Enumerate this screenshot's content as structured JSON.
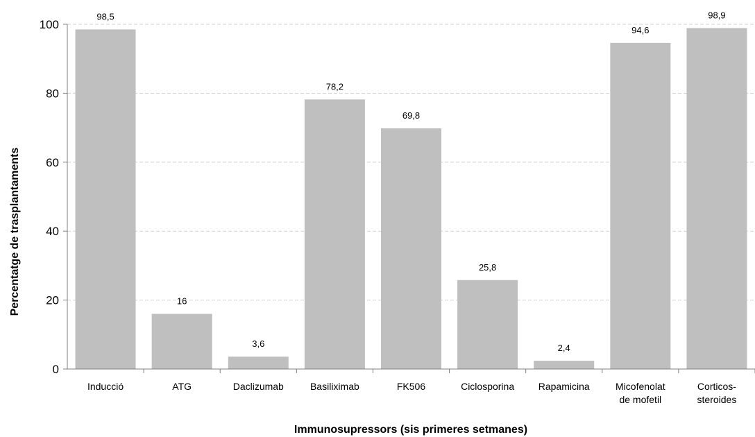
{
  "chart_data": {
    "type": "bar",
    "categories": [
      "Inducció",
      "ATG",
      "Daclizumab",
      "Basiliximab",
      "FK506",
      "Ciclosporina",
      "Rapamicina",
      "Micofenolat de mofetil",
      "Corticos-steroides"
    ],
    "category_lines": [
      [
        "Inducció"
      ],
      [
        "ATG"
      ],
      [
        "Daclizumab"
      ],
      [
        "Basiliximab"
      ],
      [
        "FK506"
      ],
      [
        "Ciclosporina"
      ],
      [
        "Rapamicina"
      ],
      [
        "Micofenolat",
        "de mofetil"
      ],
      [
        "Corticos-",
        "steroides"
      ]
    ],
    "values": [
      98.5,
      16,
      3.6,
      78.2,
      69.8,
      25.8,
      2.4,
      94.6,
      98.9
    ],
    "value_labels": [
      "98,5",
      "16",
      "3,6",
      "78,2",
      "69,8",
      "25,8",
      "2,4",
      "94,6",
      "98,9"
    ],
    "title": "",
    "xlabel": "Immunosupressors (sis primeres setmanes)",
    "ylabel": "Percentatge de trasplantaments",
    "ylim": [
      0,
      100
    ],
    "yticks": [
      0,
      20,
      40,
      60,
      80,
      100
    ],
    "grid": true,
    "legend": "none",
    "colors": {
      "bar": "#bfbfbf",
      "grid": "#d0d0d0",
      "axis": "#7f7f7f"
    }
  }
}
